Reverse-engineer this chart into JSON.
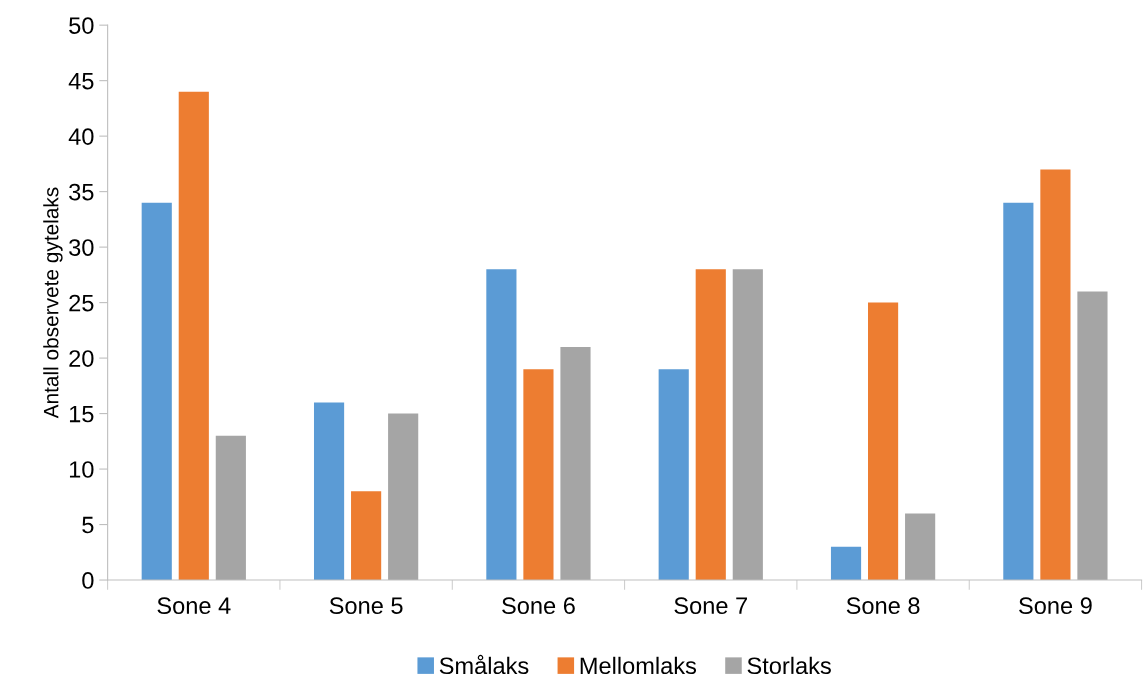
{
  "chart_data": {
    "type": "bar",
    "ylabel": "Antall observete gytelaks",
    "categories": [
      "Sone 4",
      "Sone 5",
      "Sone 6",
      "Sone 7",
      "Sone 8",
      "Sone 9"
    ],
    "series": [
      {
        "name": "Smålaks",
        "color": "#5b9bd5",
        "values": [
          34,
          16,
          28,
          19,
          3,
          34
        ]
      },
      {
        "name": "Mellomlaks",
        "color": "#ed7d31",
        "values": [
          44,
          8,
          19,
          28,
          25,
          37
        ]
      },
      {
        "name": "Storlaks",
        "color": "#a5a5a5",
        "values": [
          13,
          15,
          21,
          28,
          6,
          26
        ]
      }
    ],
    "ylim": [
      0,
      50
    ],
    "yticks": [
      0,
      5,
      10,
      15,
      20,
      25,
      30,
      35,
      40,
      45,
      50
    ],
    "grid": false,
    "legend": "bottom"
  }
}
